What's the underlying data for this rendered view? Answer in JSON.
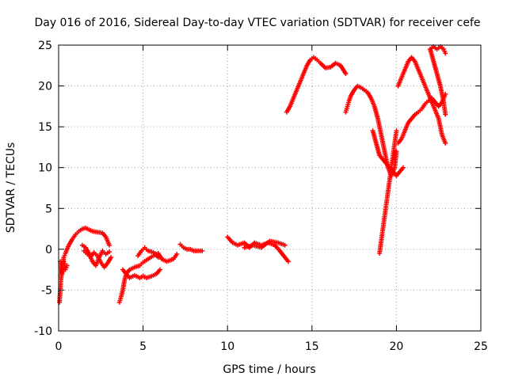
{
  "chart_data": {
    "type": "scatter",
    "title": "Day 016 of 2016, Sidereal Day-to-day VTEC variation (SDTVAR) for receiver cefe",
    "xlabel": "GPS time / hours",
    "ylabel": "SDTVAR / TECUs",
    "xlim": [
      0,
      25
    ],
    "ylim": [
      -10,
      25
    ],
    "xticks": [
      0,
      5,
      10,
      15,
      20,
      25
    ],
    "yticks": [
      -10,
      -5,
      0,
      5,
      10,
      15,
      20,
      25
    ],
    "xtick_labels": [
      "0",
      "5",
      "10",
      "15",
      "20",
      "25"
    ],
    "ytick_labels": [
      "-10",
      "-5",
      "0",
      "5",
      "10",
      "15",
      "20",
      "25"
    ],
    "grid": true,
    "marker": "+",
    "color": "#ff0000",
    "series": [
      {
        "x": [
          0.1,
          0.2,
          0.3,
          0.4,
          0.6,
          0.8,
          1.0,
          1.2,
          1.4,
          1.6,
          1.8,
          2.0,
          2.3,
          2.6,
          2.8,
          3.0
        ],
        "y": [
          -1.5,
          -3.0,
          -1.0,
          -0.5,
          0.5,
          1.2,
          1.8,
          2.2,
          2.5,
          2.6,
          2.4,
          2.2,
          2.1,
          2.0,
          1.5,
          0.5
        ]
      },
      {
        "x": [
          0.05,
          0.1,
          0.15,
          0.2,
          0.25,
          0.3,
          0.35,
          0.4,
          0.5
        ],
        "y": [
          -6.5,
          -5.0,
          -3.5,
          -2.5,
          -2.0,
          -1.5,
          -1.8,
          -2.5,
          -2.0
        ]
      },
      {
        "x": [
          1.4,
          1.6,
          1.8,
          2.0,
          2.2,
          2.4,
          2.6,
          2.8,
          3.0
        ],
        "y": [
          0.5,
          0.2,
          -0.5,
          -1.5,
          -2.0,
          -1.0,
          -0.2,
          -0.6,
          -0.3
        ]
      },
      {
        "x": [
          1.5,
          1.7,
          1.9,
          2.1,
          2.3,
          2.5,
          2.7,
          2.9,
          3.1
        ],
        "y": [
          -0.2,
          -0.6,
          -0.9,
          -0.4,
          -0.8,
          -1.6,
          -2.2,
          -1.7,
          -1.0
        ]
      },
      {
        "x": [
          3.6,
          3.7,
          3.8,
          3.9,
          4.0,
          4.2,
          4.5,
          4.8,
          5.0,
          5.3,
          5.6,
          5.9,
          6.1,
          6.4,
          6.8,
          7.0
        ],
        "y": [
          -6.5,
          -5.8,
          -5.0,
          -3.8,
          -3.0,
          -2.5,
          -2.2,
          -2.0,
          -1.6,
          -1.2,
          -0.8,
          -0.5,
          -1.2,
          -1.5,
          -1.2,
          -0.6
        ]
      },
      {
        "x": [
          3.8,
          4.0,
          4.2,
          4.5,
          4.8,
          5.0,
          5.2,
          5.5,
          5.8,
          6.0
        ],
        "y": [
          -2.5,
          -3.0,
          -3.5,
          -3.2,
          -3.5,
          -3.3,
          -3.5,
          -3.3,
          -3.0,
          -2.5
        ]
      },
      {
        "x": [
          4.7,
          4.9,
          5.1,
          5.3,
          5.5,
          5.7,
          5.9
        ],
        "y": [
          -0.8,
          -0.2,
          0.2,
          -0.2,
          -0.3,
          -0.5,
          -1.0
        ]
      },
      {
        "x": [
          7.2,
          7.4,
          7.6,
          7.8,
          8.0,
          8.2,
          8.5
        ],
        "y": [
          0.6,
          0.2,
          0.0,
          0.0,
          -0.2,
          -0.2,
          -0.2
        ]
      },
      {
        "x": [
          10.0,
          10.3,
          10.6,
          11.0,
          11.3,
          11.6,
          12.0,
          12.4,
          12.8,
          13.1,
          13.4,
          13.6
        ],
        "y": [
          1.5,
          0.8,
          0.5,
          0.8,
          0.2,
          0.8,
          0.5,
          0.8,
          0.5,
          -0.2,
          -1.0,
          -1.5
        ]
      },
      {
        "x": [
          11.0,
          11.5,
          12.0,
          12.5,
          13.0,
          13.4
        ],
        "y": [
          0.2,
          0.5,
          0.2,
          1.0,
          0.8,
          0.5
        ]
      },
      {
        "x": [
          13.5,
          13.7,
          13.9,
          14.1,
          14.3,
          14.5,
          14.7,
          14.9,
          15.1,
          15.3,
          15.5,
          15.8,
          16.1,
          16.4,
          16.7,
          17.0
        ],
        "y": [
          16.8,
          17.5,
          18.5,
          19.5,
          20.5,
          21.5,
          22.5,
          23.2,
          23.5,
          23.2,
          22.8,
          22.2,
          22.3,
          22.8,
          22.5,
          21.5
        ]
      },
      {
        "x": [
          17.0,
          17.1,
          17.2,
          17.3,
          17.5,
          17.7,
          17.9,
          18.1,
          18.3,
          18.5,
          18.7,
          18.9,
          19.1,
          19.3,
          19.5,
          19.7,
          19.9,
          20.0
        ],
        "y": [
          16.8,
          17.5,
          18.2,
          18.8,
          19.5,
          20.0,
          19.8,
          19.5,
          19.2,
          18.5,
          17.5,
          16.0,
          14.0,
          12.0,
          10.0,
          9.0,
          10.0,
          12.0
        ]
      },
      {
        "x": [
          18.6,
          18.8,
          19.0,
          19.2,
          19.4,
          19.6,
          19.8,
          20.0,
          20.2,
          20.4
        ],
        "y": [
          14.5,
          13.0,
          11.5,
          11.0,
          10.5,
          10.0,
          9.5,
          9.0,
          9.5,
          10.0
        ]
      },
      {
        "x": [
          19.0,
          19.1,
          19.2,
          19.3,
          19.4,
          19.5,
          19.6,
          19.7,
          19.8,
          19.9,
          20.0
        ],
        "y": [
          -0.5,
          1.0,
          2.5,
          4.0,
          5.5,
          7.0,
          8.5,
          10.0,
          11.5,
          13.0,
          14.5
        ]
      },
      {
        "x": [
          20.1,
          20.3,
          20.5,
          20.7,
          20.9,
          21.1,
          21.3,
          21.5,
          21.7,
          21.9,
          22.1,
          22.3,
          22.5,
          22.7,
          22.9
        ],
        "y": [
          13.0,
          13.5,
          14.5,
          15.5,
          16.0,
          16.5,
          16.8,
          17.2,
          17.8,
          18.2,
          18.5,
          18.0,
          17.5,
          18.0,
          19.0
        ]
      },
      {
        "x": [
          20.1,
          20.3,
          20.5,
          20.7,
          20.9,
          21.1,
          21.3,
          21.5,
          21.7,
          21.9,
          22.1,
          22.3,
          22.5,
          22.7,
          22.9
        ],
        "y": [
          20.0,
          21.0,
          22.0,
          23.0,
          23.5,
          23.0,
          22.0,
          21.0,
          20.0,
          19.0,
          18.0,
          17.0,
          16.0,
          14.0,
          13.0
        ]
      },
      {
        "x": [
          22.0,
          22.2,
          22.4,
          22.6,
          22.8,
          22.9
        ],
        "y": [
          24.5,
          24.8,
          24.5,
          24.8,
          24.5,
          24.0
        ]
      },
      {
        "x": [
          22.0,
          22.2,
          22.4,
          22.6,
          22.8,
          22.9
        ],
        "y": [
          24.5,
          23.0,
          21.5,
          20.0,
          18.0,
          16.5
        ]
      }
    ]
  }
}
